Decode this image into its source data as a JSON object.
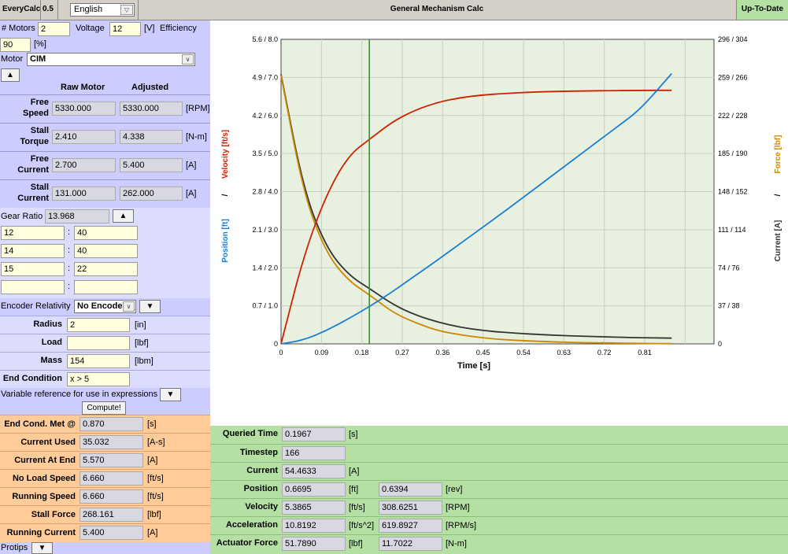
{
  "topbar": {
    "app": "EveryCalc",
    "version": "0.5",
    "language": "English",
    "title": "General Mechanism Calc",
    "status": "Up-To-Date"
  },
  "motor": {
    "motors_label": "# Motors",
    "motors_value": "2",
    "voltage_label": "Voltage",
    "voltage_value": "12",
    "voltage_unit": "[V]",
    "efficiency_label": "Efficiency",
    "efficiency_value": "90",
    "efficiency_unit": "[%]",
    "motor_label": "Motor",
    "motor_value": "CIM",
    "collapse_label": "▲",
    "col_raw": "Raw Motor",
    "col_adjusted": "Adjusted",
    "specs": [
      {
        "name_l1": "Free",
        "name_l2": "Speed",
        "raw": "5330.000",
        "adj": "5330.000",
        "unit": "[RPM]"
      },
      {
        "name_l1": "Stall",
        "name_l2": "Torque",
        "raw": "2.410",
        "adj": "4.338",
        "unit": "[N-m]"
      },
      {
        "name_l1": "Free",
        "name_l2": "Current",
        "raw": "2.700",
        "adj": "5.400",
        "unit": "[A]"
      },
      {
        "name_l1": "Stall",
        "name_l2": "Current",
        "raw": "131.000",
        "adj": "262.000",
        "unit": "[A]"
      }
    ]
  },
  "gear": {
    "label": "Gear Ratio",
    "value": "13.968",
    "toggle": "▲",
    "stages": [
      {
        "a": "12",
        "b": "40"
      },
      {
        "a": "14",
        "b": "40"
      },
      {
        "a": "15",
        "b": "22"
      },
      {
        "a": "",
        "b": ""
      }
    ],
    "sep": ":"
  },
  "encoder": {
    "label": "Encoder Relativity",
    "value": "No Encode",
    "toggle": "▼"
  },
  "inputs": [
    {
      "name": "Radius",
      "value": "2",
      "unit": "[in]"
    },
    {
      "name": "Load",
      "value": "",
      "unit": "[lbf]"
    },
    {
      "name": "Mass",
      "value": "154",
      "unit": "[lbm]"
    },
    {
      "name": "End Condition",
      "value": "x > 5",
      "unit": ""
    }
  ],
  "variable_ref": {
    "label": "Variable reference for use in expressions",
    "toggle": "▼",
    "compute": "Compute!"
  },
  "outputs": [
    {
      "name": "End Cond. Met @",
      "value": "0.870",
      "unit": "[s]"
    },
    {
      "name": "Current Used",
      "value": "35.032",
      "unit": "[A-s]"
    },
    {
      "name": "Current At End",
      "value": "5.570",
      "unit": "[A]"
    },
    {
      "name": "No Load Speed",
      "value": "6.660",
      "unit": "[ft/s]"
    },
    {
      "name": "Running Speed",
      "value": "6.660",
      "unit": "[ft/s]"
    },
    {
      "name": "Stall Force",
      "value": "268.161",
      "unit": "[lbf]"
    },
    {
      "name": "Running Current",
      "value": "5.400",
      "unit": "[A]"
    }
  ],
  "protips": {
    "label": "Protips",
    "toggle": "▼"
  },
  "query": [
    {
      "name": "Queried Time",
      "v1": "0.1967",
      "u1": "[s]",
      "v2": null,
      "u2": null
    },
    {
      "name": "Timestep",
      "v1": "166",
      "u1": "",
      "v2": null,
      "u2": null
    },
    {
      "name": "Current",
      "v1": "54.4633",
      "u1": "[A]",
      "v2": null,
      "u2": null
    },
    {
      "name": "Position",
      "v1": "0.6695",
      "u1": "[ft]",
      "v2": "0.6394",
      "u2": "[rev]"
    },
    {
      "name": "Velocity",
      "v1": "5.3865",
      "u1": "[ft/s]",
      "v2": "308.6251",
      "u2": "[RPM]"
    },
    {
      "name": "Acceleration",
      "v1": "10.8192",
      "u1": "[ft/s^2]",
      "v2": "619.8927",
      "u2": "[RPM/s]"
    },
    {
      "name": "Actuator Force",
      "v1": "51.7890",
      "u1": "[lbf]",
      "v2": "11.7022",
      "u2": "[N-m]"
    }
  ],
  "chart_data": {
    "type": "line",
    "xlabel": "Time [s]",
    "x_ticks": [
      "0",
      "0.09",
      "0.18",
      "0.27",
      "0.36",
      "0.45",
      "0.54",
      "0.63",
      "0.72",
      "0.81"
    ],
    "xlim": [
      0,
      0.87
    ],
    "left_ticks": [
      "0",
      "0.7 / 1.0",
      "1.4 / 2.0",
      "2.1 / 3.0",
      "2.8 / 4.0",
      "3.5 / 5.0",
      "4.2 / 6.0",
      "4.9 / 7.0",
      "5.6 / 8.0"
    ],
    "right_ticks": [
      "0",
      "37 / 38",
      "74 / 76",
      "111 / 114",
      "148 / 152",
      "185 / 190",
      "222 / 228",
      "259 / 266",
      "296 / 304"
    ],
    "left_label_position": "Position [ft]",
    "left_label_sep": "/",
    "left_label_velocity": "Velocity [ft/s]",
    "right_label_current": "Current [A]",
    "right_label_sep": "/",
    "right_label_force": "Force [lbf]",
    "query_time": 0.1967,
    "colors": {
      "position": "#1a7fd4",
      "velocity": "#cc2200",
      "current": "#333333",
      "force": "#cc8800",
      "marker": "#2a9a2a",
      "plot_bg": "#e8f0e0",
      "grid": "#c8d0c0"
    },
    "series": [
      {
        "name": "Position [ft]",
        "scale": "left, 0-5.6",
        "x": [
          0,
          0.05,
          0.1,
          0.15,
          0.2,
          0.25,
          0.3,
          0.35,
          0.4,
          0.45,
          0.5,
          0.55,
          0.6,
          0.65,
          0.7,
          0.75,
          0.8,
          0.87
        ],
        "values": [
          0,
          0.07,
          0.24,
          0.46,
          0.7,
          0.97,
          1.26,
          1.55,
          1.85,
          2.15,
          2.45,
          2.76,
          3.07,
          3.38,
          3.69,
          4.0,
          4.31,
          4.97
        ]
      },
      {
        "name": "Velocity [ft/s]",
        "scale": "left, 0-8.0",
        "x": [
          0,
          0.05,
          0.1,
          0.15,
          0.2,
          0.25,
          0.3,
          0.35,
          0.4,
          0.45,
          0.5,
          0.55,
          0.6,
          0.7,
          0.8,
          0.87
        ],
        "values": [
          0,
          2.3,
          3.9,
          4.95,
          5.4,
          5.85,
          6.15,
          6.35,
          6.47,
          6.54,
          6.58,
          6.61,
          6.63,
          6.65,
          6.66,
          6.66
        ]
      },
      {
        "name": "Current [A]",
        "scale": "right, 0-296",
        "x": [
          0,
          0.05,
          0.1,
          0.15,
          0.2,
          0.25,
          0.3,
          0.35,
          0.4,
          0.45,
          0.5,
          0.6,
          0.7,
          0.8,
          0.87
        ],
        "values": [
          262,
          150,
          94,
          67,
          53,
          38,
          28,
          21,
          16,
          13,
          11,
          8.5,
          7,
          6,
          5.6
        ]
      },
      {
        "name": "Force [lbf]",
        "scale": "right, 0-304",
        "x": [
          0,
          0.05,
          0.1,
          0.15,
          0.2,
          0.25,
          0.3,
          0.35,
          0.4,
          0.45,
          0.5,
          0.6,
          0.7,
          0.8,
          0.87
        ],
        "values": [
          268,
          150,
          91,
          63,
          48,
          31,
          21,
          13,
          9,
          6,
          4,
          2,
          1,
          0.5,
          0.2
        ]
      }
    ]
  }
}
